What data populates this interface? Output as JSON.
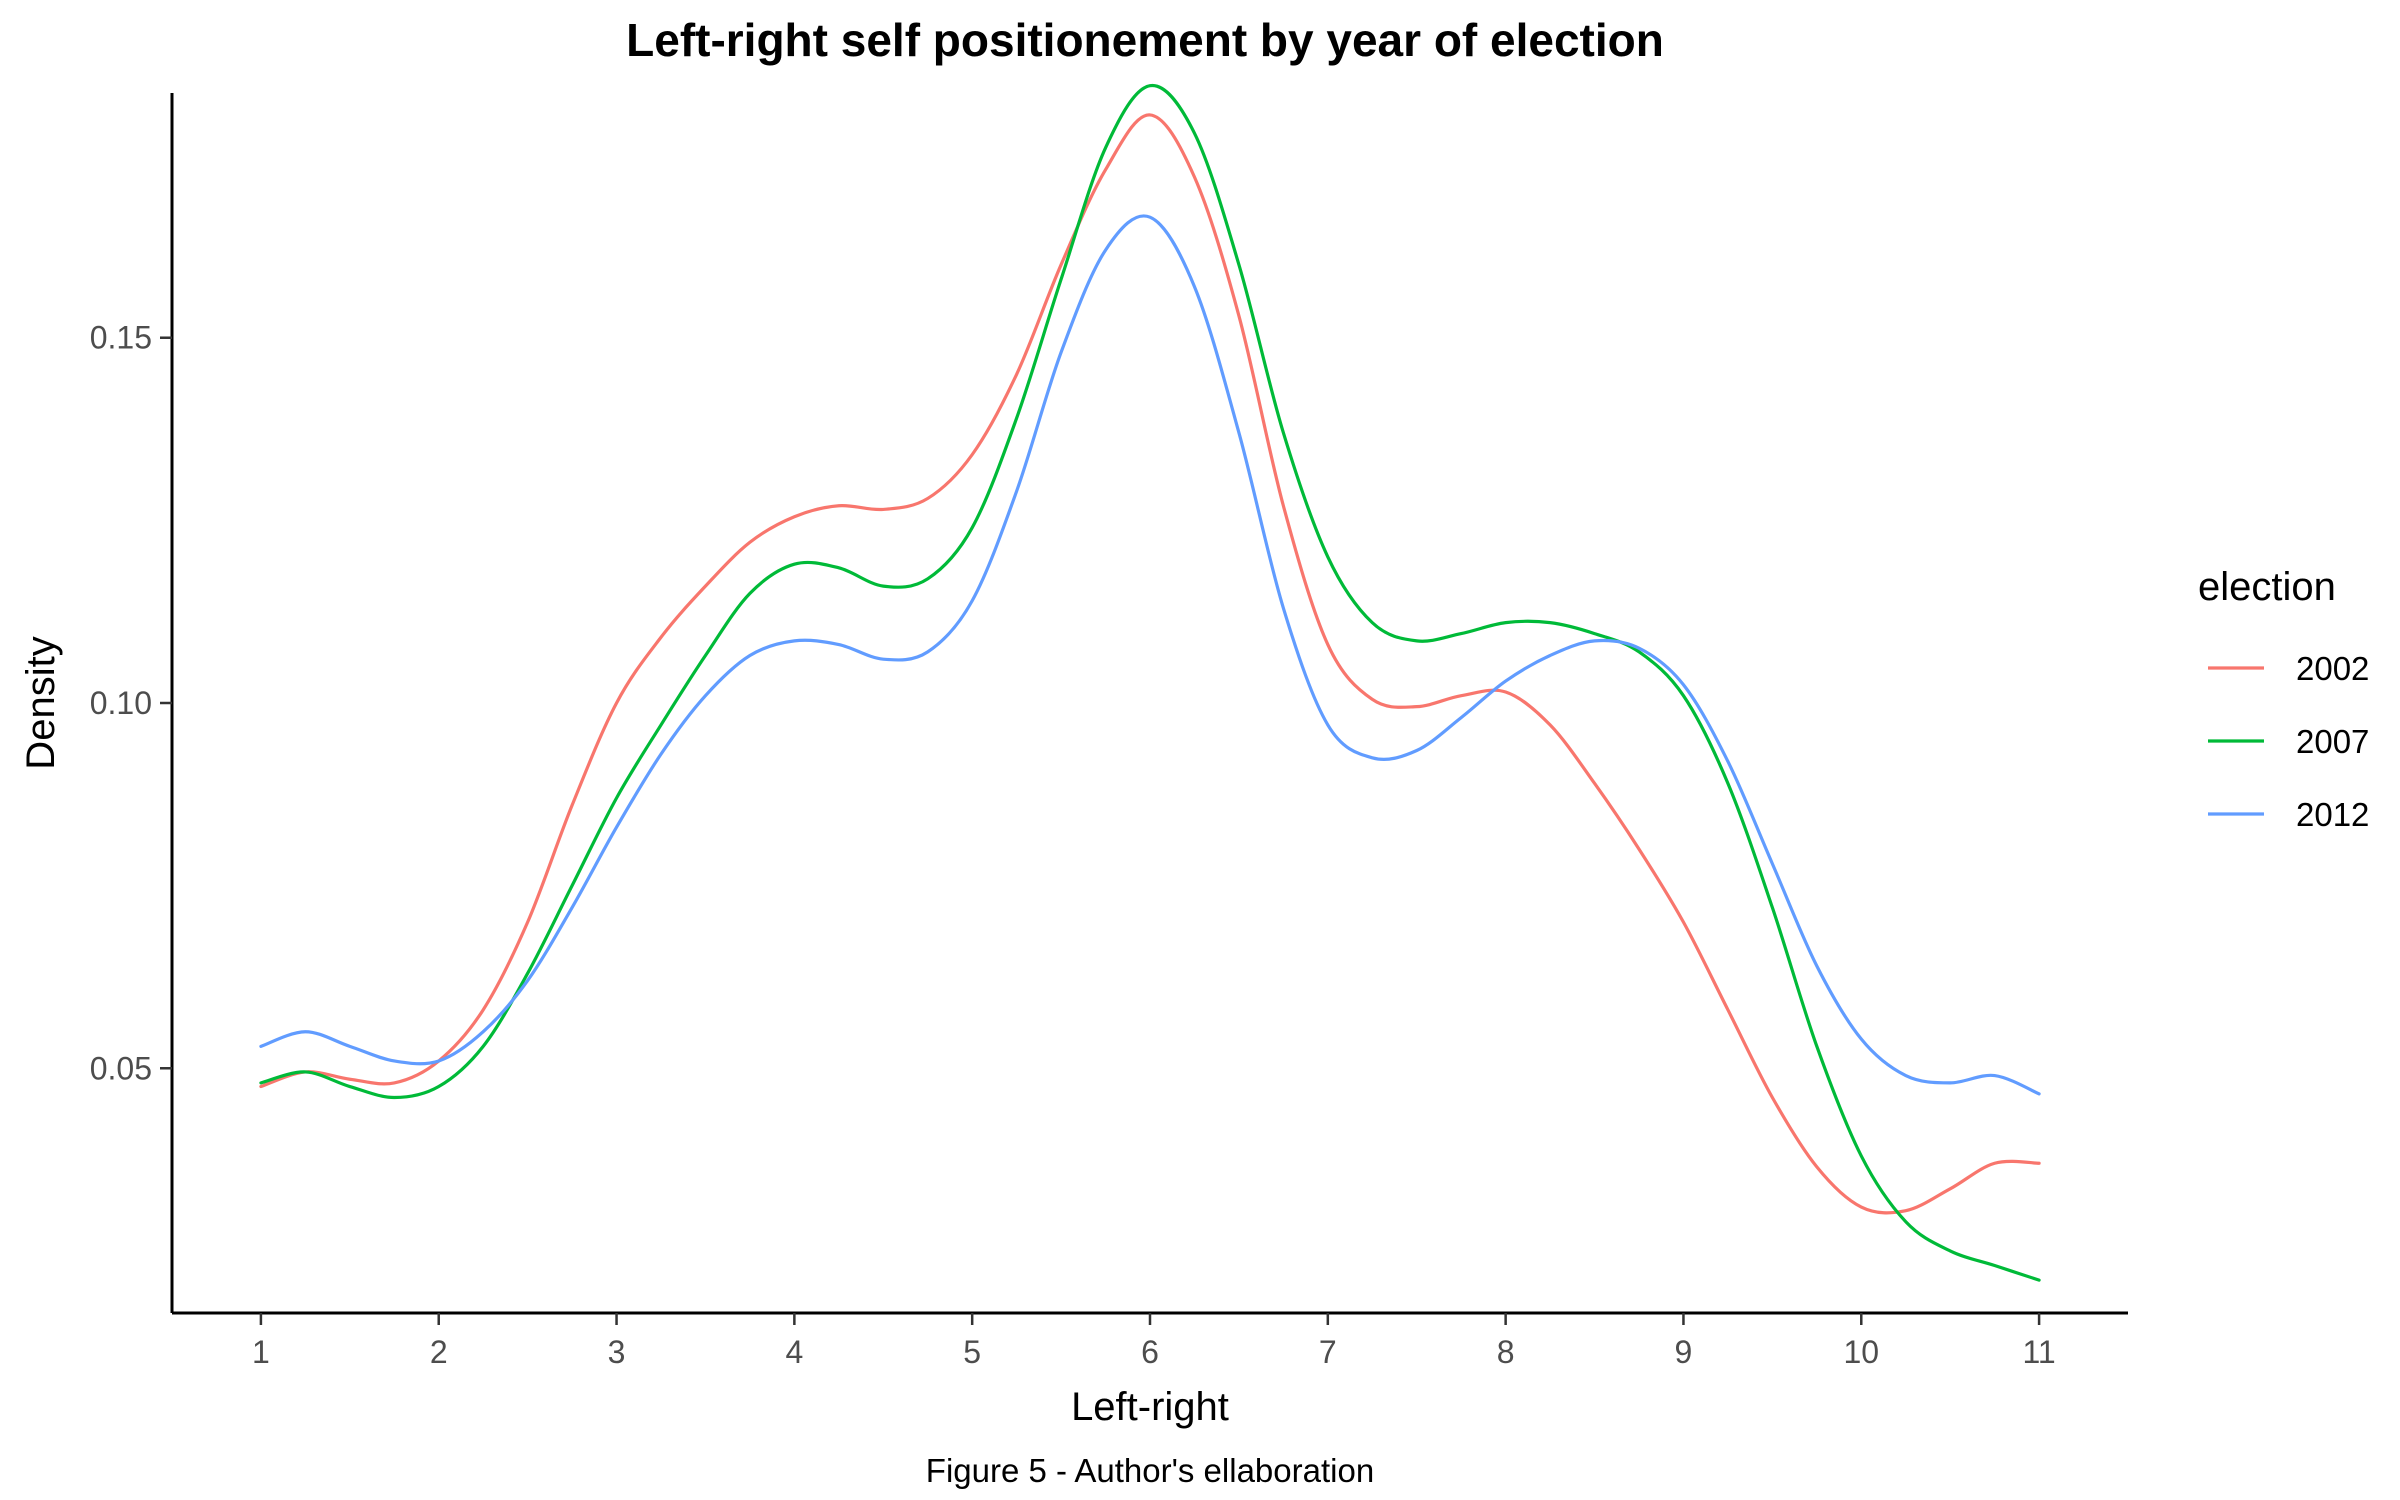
{
  "chart_data": {
    "type": "line",
    "title": "Left-right self positionement by year of election",
    "xlabel": "Left-right",
    "ylabel": "Density",
    "caption": "Figure 5 - Author's ellaboration",
    "xlim": [
      0.5,
      11.5
    ],
    "ylim": [
      0.0165,
      0.1835
    ],
    "x_ticks": [
      1,
      2,
      3,
      4,
      5,
      6,
      7,
      8,
      9,
      10,
      11
    ],
    "x_tick_labels": [
      "1",
      "2",
      "3",
      "4",
      "5",
      "6",
      "7",
      "8",
      "9",
      "10",
      "11"
    ],
    "y_ticks": [
      0.05,
      0.1,
      0.15
    ],
    "y_tick_labels": [
      "0.05",
      "0.10",
      "0.15"
    ],
    "grid": false,
    "legend": {
      "title": "election",
      "position": "right"
    },
    "series": [
      {
        "name": "2002",
        "color": "#F8766D",
        "points": [
          [
            1.0,
            0.0475
          ],
          [
            1.25,
            0.0495
          ],
          [
            1.5,
            0.0485
          ],
          [
            1.75,
            0.048
          ],
          [
            2.0,
            0.051
          ],
          [
            2.25,
            0.058
          ],
          [
            2.5,
            0.07
          ],
          [
            2.75,
            0.086
          ],
          [
            3.0,
            0.1
          ],
          [
            3.25,
            0.109
          ],
          [
            3.5,
            0.116
          ],
          [
            3.75,
            0.122
          ],
          [
            4.0,
            0.1255
          ],
          [
            4.25,
            0.127
          ],
          [
            4.5,
            0.1265
          ],
          [
            4.75,
            0.128
          ],
          [
            5.0,
            0.134
          ],
          [
            5.25,
            0.145
          ],
          [
            5.5,
            0.16
          ],
          [
            5.75,
            0.173
          ],
          [
            6.0,
            0.1805
          ],
          [
            6.25,
            0.172
          ],
          [
            6.5,
            0.153
          ],
          [
            6.75,
            0.127
          ],
          [
            7.0,
            0.108
          ],
          [
            7.25,
            0.1005
          ],
          [
            7.5,
            0.0995
          ],
          [
            7.75,
            0.101
          ],
          [
            8.0,
            0.1015
          ],
          [
            8.25,
            0.097
          ],
          [
            8.5,
            0.089
          ],
          [
            8.75,
            0.08
          ],
          [
            9.0,
            0.07
          ],
          [
            9.25,
            0.058
          ],
          [
            9.5,
            0.046
          ],
          [
            9.75,
            0.0365
          ],
          [
            10.0,
            0.031
          ],
          [
            10.25,
            0.0305
          ],
          [
            10.5,
            0.0335
          ],
          [
            10.75,
            0.037
          ],
          [
            11.0,
            0.037
          ]
        ]
      },
      {
        "name": "2007",
        "color": "#00BA38",
        "points": [
          [
            1.0,
            0.048
          ],
          [
            1.25,
            0.0495
          ],
          [
            1.5,
            0.0475
          ],
          [
            1.75,
            0.046
          ],
          [
            2.0,
            0.0475
          ],
          [
            2.25,
            0.053
          ],
          [
            2.5,
            0.063
          ],
          [
            2.75,
            0.075
          ],
          [
            3.0,
            0.087
          ],
          [
            3.25,
            0.097
          ],
          [
            3.5,
            0.1065
          ],
          [
            3.75,
            0.115
          ],
          [
            4.0,
            0.119
          ],
          [
            4.25,
            0.1185
          ],
          [
            4.5,
            0.116
          ],
          [
            4.75,
            0.117
          ],
          [
            5.0,
            0.124
          ],
          [
            5.25,
            0.139
          ],
          [
            5.5,
            0.158
          ],
          [
            5.75,
            0.176
          ],
          [
            6.0,
            0.1845
          ],
          [
            6.25,
            0.178
          ],
          [
            6.5,
            0.16
          ],
          [
            6.75,
            0.137
          ],
          [
            7.0,
            0.12
          ],
          [
            7.25,
            0.111
          ],
          [
            7.5,
            0.1085
          ],
          [
            7.75,
            0.1095
          ],
          [
            8.0,
            0.111
          ],
          [
            8.25,
            0.111
          ],
          [
            8.5,
            0.1095
          ],
          [
            8.75,
            0.107
          ],
          [
            9.0,
            0.101
          ],
          [
            9.25,
            0.089
          ],
          [
            9.5,
            0.072
          ],
          [
            9.75,
            0.053
          ],
          [
            10.0,
            0.038
          ],
          [
            10.25,
            0.029
          ],
          [
            10.5,
            0.025
          ],
          [
            10.75,
            0.023
          ],
          [
            11.0,
            0.021
          ]
        ]
      },
      {
        "name": "2012",
        "color": "#619CFF",
        "points": [
          [
            1.0,
            0.053
          ],
          [
            1.25,
            0.055
          ],
          [
            1.5,
            0.053
          ],
          [
            1.75,
            0.051
          ],
          [
            2.0,
            0.051
          ],
          [
            2.25,
            0.055
          ],
          [
            2.5,
            0.062
          ],
          [
            2.75,
            0.072
          ],
          [
            3.0,
            0.083
          ],
          [
            3.25,
            0.093
          ],
          [
            3.5,
            0.101
          ],
          [
            3.75,
            0.1065
          ],
          [
            4.0,
            0.1085
          ],
          [
            4.25,
            0.108
          ],
          [
            4.5,
            0.106
          ],
          [
            4.75,
            0.107
          ],
          [
            5.0,
            0.114
          ],
          [
            5.25,
            0.129
          ],
          [
            5.5,
            0.148
          ],
          [
            5.75,
            0.162
          ],
          [
            6.0,
            0.1665
          ],
          [
            6.25,
            0.157
          ],
          [
            6.5,
            0.137
          ],
          [
            6.75,
            0.113
          ],
          [
            7.0,
            0.097
          ],
          [
            7.25,
            0.0925
          ],
          [
            7.5,
            0.0935
          ],
          [
            7.75,
            0.098
          ],
          [
            8.0,
            0.103
          ],
          [
            8.25,
            0.1065
          ],
          [
            8.5,
            0.1085
          ],
          [
            8.75,
            0.1075
          ],
          [
            9.0,
            0.1025
          ],
          [
            9.25,
            0.092
          ],
          [
            9.5,
            0.078
          ],
          [
            9.75,
            0.064
          ],
          [
            10.0,
            0.054
          ],
          [
            10.25,
            0.049
          ],
          [
            10.5,
            0.048
          ],
          [
            10.75,
            0.049
          ],
          [
            11.0,
            0.0465
          ]
        ]
      }
    ]
  }
}
